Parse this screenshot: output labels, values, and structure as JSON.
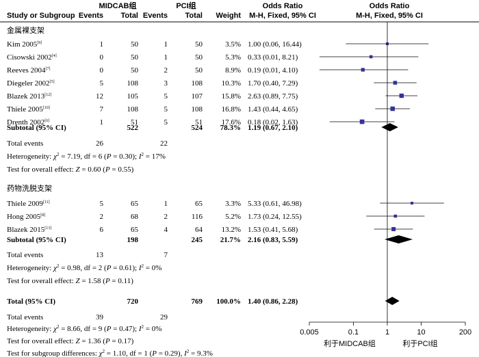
{
  "headers": {
    "group1": "MIDCAB组",
    "group2": "PCI组",
    "or_left": "Odds Ratio",
    "or_right": "Odds Ratio",
    "study": "Study or Subgroup",
    "events1": "Events",
    "total1": "Total",
    "events2": "Events",
    "total2": "Total",
    "weight": "Weight",
    "method_left": "M-H, Fixed, 95% CI",
    "method_right": "M-H, Fixed, 95% CI"
  },
  "subgroups": [
    {
      "title": "金属裸支架",
      "studies": [
        {
          "name": "Kim 2005",
          "ref": "[9]",
          "e1": "1",
          "t1": "50",
          "e2": "1",
          "t2": "50",
          "weight": "3.5%",
          "ci": "1.00 (0.06, 16.44)",
          "or": 1.0,
          "lo": 0.06,
          "hi": 16.44,
          "w": 3.5
        },
        {
          "name": "Cisowski 2002",
          "ref": "[4]",
          "e1": "0",
          "t1": "50",
          "e2": "1",
          "t2": "50",
          "weight": "5.3%",
          "ci": "0.33 (0.01, 8.21)",
          "or": 0.33,
          "lo": 0.01,
          "hi": 8.21,
          "w": 5.3
        },
        {
          "name": "Reeves 2004",
          "ref": "[7]",
          "e1": "0",
          "t1": "50",
          "e2": "2",
          "t2": "50",
          "weight": "8.9%",
          "ci": "0.19 (0.01, 4.10)",
          "or": 0.19,
          "lo": 0.01,
          "hi": 4.1,
          "w": 8.9
        },
        {
          "name": "Diegeler 2002",
          "ref": "[5]",
          "e1": "5",
          "t1": "108",
          "e2": "3",
          "t2": "108",
          "weight": "10.3%",
          "ci": "1.70 (0.40, 7.29)",
          "or": 1.7,
          "lo": 0.4,
          "hi": 7.29,
          "w": 10.3
        },
        {
          "name": "Blazek 2013",
          "ref": "[12]",
          "e1": "12",
          "t1": "105",
          "e2": "5",
          "t2": "107",
          "weight": "15.8%",
          "ci": "2.63 (0.89, 7.75)",
          "or": 2.63,
          "lo": 0.89,
          "hi": 7.75,
          "w": 15.8
        },
        {
          "name": "Thiele 2005",
          "ref": "[10]",
          "e1": "7",
          "t1": "108",
          "e2": "5",
          "t2": "108",
          "weight": "16.8%",
          "ci": "1.43 (0.44, 4.65)",
          "or": 1.43,
          "lo": 0.44,
          "hi": 4.65,
          "w": 16.8
        },
        {
          "name": "Drenth 2002",
          "ref": "[6]",
          "e1": "1",
          "t1": "51",
          "e2": "5",
          "t2": "51",
          "weight": "17.6%",
          "ci": "0.18 (0.02, 1.63)",
          "or": 0.18,
          "lo": 0.02,
          "hi": 1.63,
          "w": 17.6
        }
      ],
      "subtotal": {
        "label": "Subtotal (95% CI)",
        "t1": "522",
        "t2": "524",
        "weight": "78.3%",
        "ci": "1.19 (0.67, 2.10)",
        "or": 1.19,
        "lo": 0.67,
        "hi": 2.1
      },
      "events": {
        "label": "Total events",
        "e1": "26",
        "e2": "22"
      },
      "heterogeneity": {
        "prefix": "Heterogeneity: ",
        "chi": "χ",
        "sq": "2",
        "rest": " = 7.19, df = 6 (",
        "p": "P",
        "pval": " = 0.30); ",
        "i": "I",
        "isq": "2",
        "ival": " = 17%"
      },
      "overall": {
        "prefix": "Test for overall effect: ",
        "z": "Z",
        "zval": " = 0.60 (",
        "p": "P",
        "pval": " = 0.55)"
      }
    },
    {
      "title": "药物洗脱支架",
      "studies": [
        {
          "name": "Thiele 2009",
          "ref": "[11]",
          "e1": "5",
          "t1": "65",
          "e2": "1",
          "t2": "65",
          "weight": "3.3%",
          "ci": "5.33 (0.61, 46.98)",
          "or": 5.33,
          "lo": 0.61,
          "hi": 46.98,
          "w": 3.3
        },
        {
          "name": "Hong 2005",
          "ref": "[8]",
          "e1": "2",
          "t1": "68",
          "e2": "2",
          "t2": "116",
          "weight": "5.2%",
          "ci": "1.73 (0.24, 12.55)",
          "or": 1.73,
          "lo": 0.24,
          "hi": 12.55,
          "w": 5.2
        },
        {
          "name": "Blazek 2015",
          "ref": "[13]",
          "e1": "6",
          "t1": "65",
          "e2": "4",
          "t2": "64",
          "weight": "13.2%",
          "ci": "1.53 (0.41, 5.68)",
          "or": 1.53,
          "lo": 0.41,
          "hi": 5.68,
          "w": 13.2
        }
      ],
      "subtotal": {
        "label": "Subtotal (95% CI)",
        "t1": "198",
        "t2": "245",
        "weight": "21.7%",
        "ci": "2.16 (0.83, 5.59)",
        "or": 2.16,
        "lo": 0.83,
        "hi": 5.59
      },
      "events": {
        "label": "Total events",
        "e1": "13",
        "e2": "7"
      },
      "heterogeneity": {
        "prefix": "Heterogeneity: ",
        "chi": "χ",
        "sq": "2",
        "rest": " = 0.98, df = 2 (",
        "p": "P",
        "pval": " = 0.61); ",
        "i": "I",
        "isq": "2",
        "ival": " = 0%"
      },
      "overall": {
        "prefix": "Test for overall effect: ",
        "z": "Z",
        "zval": " = 1.58 (",
        "p": "P",
        "pval": " = 0.11)"
      }
    }
  ],
  "total": {
    "label": "Total (95% CI)",
    "t1": "720",
    "t2": "769",
    "weight": "100.0%",
    "ci": "1.40 (0.86, 2.28)",
    "or": 1.4,
    "lo": 0.86,
    "hi": 2.28
  },
  "total_events": {
    "label": "Total events",
    "e1": "39",
    "e2": "29"
  },
  "total_heterogeneity": {
    "prefix": "Heterogeneity: ",
    "chi": "χ",
    "sq": "2",
    "rest": " = 8.66, df = 9 (",
    "p": "P",
    "pval": " = 0.47); ",
    "i": "I",
    "isq": "2",
    "ival": " = 0%"
  },
  "total_overall": {
    "prefix": "Test for overall effect: ",
    "z": "Z",
    "zval": " = 1.36 (",
    "p": "P",
    "pval": " = 0.17)"
  },
  "subgroup_diff": {
    "prefix": "Test for subgroup differences: ",
    "chi": "χ",
    "sq": "2",
    "rest": " = 1.10, df = 1 (",
    "p": "P",
    "pval": " = 0.29), ",
    "i": "I",
    "isq": "2",
    "ival": " = 9.3%"
  },
  "colors": {
    "marker": "#333399",
    "line": "#000000",
    "text": "#000000"
  },
  "chart_data": {
    "type": "forest",
    "x_scale": "log",
    "xlim": [
      0.005,
      200
    ],
    "ticks": [
      {
        "value": 0.005,
        "label": "0.005"
      },
      {
        "value": 0.1,
        "label": "0.1"
      },
      {
        "value": 1,
        "label": "1"
      },
      {
        "value": 10,
        "label": "10"
      },
      {
        "value": 200,
        "label": "200"
      }
    ],
    "favours_left": "利于MIDCAB组",
    "favours_right": "利于PCI组",
    "null_value": 1
  }
}
